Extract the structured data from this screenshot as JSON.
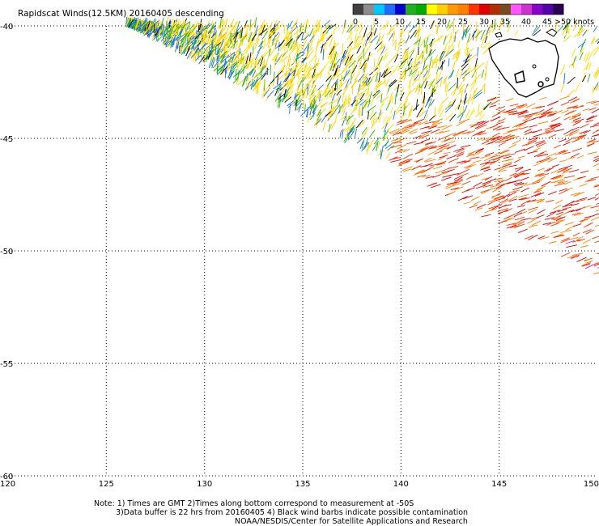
{
  "title": "Rapidscat Winds(12.5KM) 20160405 descending",
  "colorbar": {
    "labels": [
      "0",
      "5",
      "10",
      "15",
      "20",
      "25",
      "30",
      "35",
      "40",
      "45",
      ">50 knots"
    ],
    "colors": [
      "#404040",
      "#8c8c8c",
      "#00c8ff",
      "#1f6bff",
      "#0000d0",
      "#22b022",
      "#00aa00",
      "#ffff00",
      "#ffd000",
      "#ff9900",
      "#ff7f00",
      "#ff3300",
      "#e00000",
      "#b03000",
      "#7a4a20",
      "#ff55ff",
      "#cc33cc",
      "#8800cc",
      "#5500aa",
      "#2a0055"
    ]
  },
  "axes": {
    "lon_ticks": [
      "120",
      "125",
      "130",
      "135",
      "140",
      "145",
      "150"
    ],
    "lat_ticks": [
      "-40",
      "-45",
      "-50",
      "-55",
      "-60"
    ],
    "lon_values": [
      120,
      125,
      130,
      135,
      140,
      145,
      150
    ],
    "lat_values": [
      -40,
      -45,
      -50,
      -55,
      -60
    ],
    "lon_range": [
      120,
      150
    ],
    "lat_range": [
      -60,
      -40
    ],
    "grid": "dotted"
  },
  "landmass": "Tasmania",
  "notes": {
    "line1": "Note: 1) Times are GMT 2)Times along bottom correspond to measurement at -50S",
    "line2": "3)Data buffer is 22 hrs from 20160405 4) Black wind barbs indicate possible contamination",
    "line3": "NOAA/NESDIS/Center for Satellite Applications and Research"
  },
  "swath": {
    "description_colors": {
      "north": [
        "#ffd000",
        "#ffe600",
        "#22b022",
        "#1f6bff",
        "#000000"
      ],
      "south": [
        "#ff3300",
        "#e00000",
        "#ff7f00",
        "#cc33cc"
      ]
    }
  }
}
